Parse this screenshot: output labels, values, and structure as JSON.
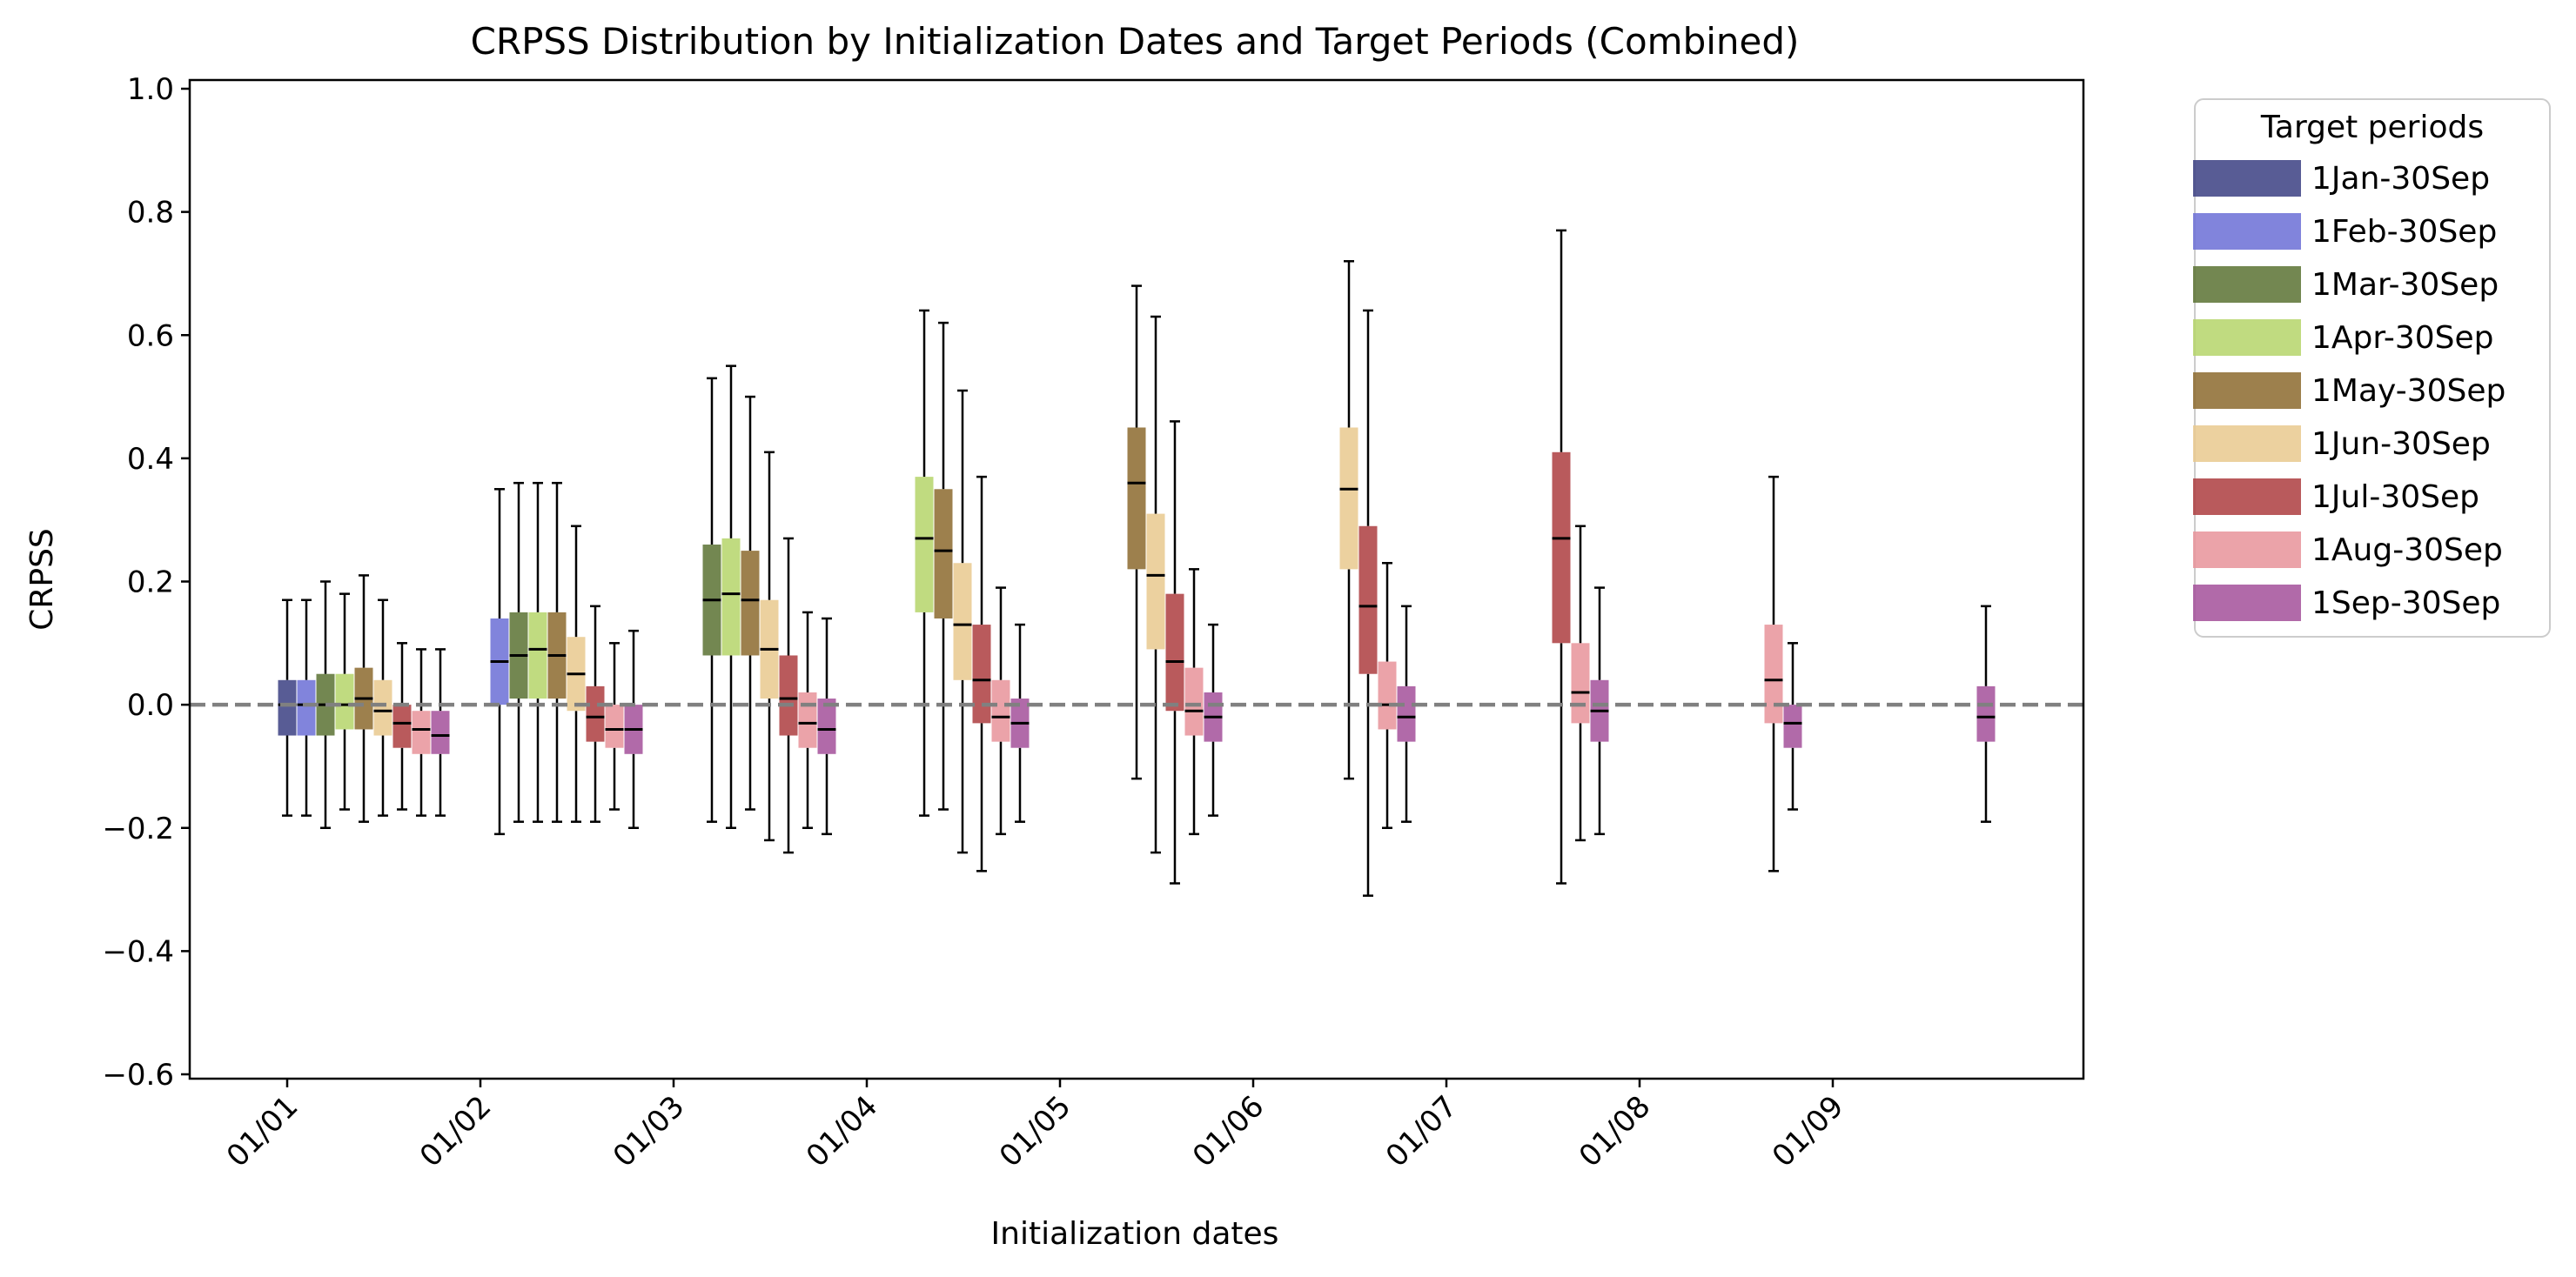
{
  "chart_data": {
    "type": "box",
    "title": "CRPSS Distribution by Initialization Dates and Target Periods (Combined)",
    "xlabel": "Initialization dates",
    "ylabel": "CRPSS",
    "ylim": [
      -0.6,
      1.0
    ],
    "yticks": [
      -0.6,
      -0.4,
      -0.2,
      0.0,
      0.2,
      0.4,
      0.6,
      0.8,
      1.0
    ],
    "ytick_labels": [
      "−0.6",
      "−0.4",
      "−0.2",
      "0.0",
      "0.2",
      "0.4",
      "0.6",
      "0.8",
      "1.0"
    ],
    "categories": [
      "01/01",
      "01/02",
      "01/03",
      "01/04",
      "01/05",
      "01/06",
      "01/07",
      "01/08",
      "01/09"
    ],
    "reference_line": 0.0,
    "grid": false,
    "legend_position": "outside-right",
    "legend": {
      "title": "Target periods",
      "entries": [
        {
          "name": "1Jan-30Sep",
          "color": "#3b3f82"
        },
        {
          "name": "1Feb-30Sep",
          "color": "#6b6fd6"
        },
        {
          "name": "1Mar-30Sep",
          "color": "#5a7233"
        },
        {
          "name": "1Apr-30Sep",
          "color": "#b5d56a"
        },
        {
          "name": "1May-30Sep",
          "color": "#8c6a2e"
        },
        {
          "name": "1Jun-30Sep",
          "color": "#e9c98e"
        },
        {
          "name": "1Jul-30Sep",
          "color": "#ad3d3f"
        },
        {
          "name": "1Aug-30Sep",
          "color": "#e8939a"
        },
        {
          "name": "1Sep-30Sep",
          "color": "#a3509a"
        }
      ]
    },
    "groups": [
      {
        "date": "01/01",
        "boxes": [
          {
            "period": "1Jan-30Sep",
            "q1": -0.05,
            "median": 0.0,
            "q3": 0.04,
            "whislo": -0.18,
            "whishi": 0.17
          },
          {
            "period": "1Feb-30Sep",
            "q1": -0.05,
            "median": 0.0,
            "q3": 0.04,
            "whislo": -0.18,
            "whishi": 0.17
          },
          {
            "period": "1Mar-30Sep",
            "q1": -0.05,
            "median": 0.0,
            "q3": 0.05,
            "whislo": -0.2,
            "whishi": 0.2
          },
          {
            "period": "1Apr-30Sep",
            "q1": -0.04,
            "median": 0.0,
            "q3": 0.05,
            "whislo": -0.17,
            "whishi": 0.18
          },
          {
            "period": "1May-30Sep",
            "q1": -0.04,
            "median": 0.01,
            "q3": 0.06,
            "whislo": -0.19,
            "whishi": 0.21
          },
          {
            "period": "1Jun-30Sep",
            "q1": -0.05,
            "median": -0.01,
            "q3": 0.04,
            "whislo": -0.18,
            "whishi": 0.17
          },
          {
            "period": "1Jul-30Sep",
            "q1": -0.07,
            "median": -0.03,
            "q3": 0.0,
            "whislo": -0.17,
            "whishi": 0.1
          },
          {
            "period": "1Aug-30Sep",
            "q1": -0.08,
            "median": -0.04,
            "q3": -0.01,
            "whislo": -0.18,
            "whishi": 0.09
          },
          {
            "period": "1Sep-30Sep",
            "q1": -0.08,
            "median": -0.05,
            "q3": -0.01,
            "whislo": -0.18,
            "whishi": 0.09
          }
        ]
      },
      {
        "date": "01/02",
        "boxes": [
          {
            "period": "1Feb-30Sep",
            "q1": 0.0,
            "median": 0.07,
            "q3": 0.14,
            "whislo": -0.21,
            "whishi": 0.35
          },
          {
            "period": "1Mar-30Sep",
            "q1": 0.01,
            "median": 0.08,
            "q3": 0.15,
            "whislo": -0.19,
            "whishi": 0.36
          },
          {
            "period": "1Apr-30Sep",
            "q1": 0.01,
            "median": 0.09,
            "q3": 0.15,
            "whislo": -0.19,
            "whishi": 0.36
          },
          {
            "period": "1May-30Sep",
            "q1": 0.01,
            "median": 0.08,
            "q3": 0.15,
            "whislo": -0.19,
            "whishi": 0.36
          },
          {
            "period": "1Jun-30Sep",
            "q1": -0.01,
            "median": 0.05,
            "q3": 0.11,
            "whislo": -0.19,
            "whishi": 0.29
          },
          {
            "period": "1Jul-30Sep",
            "q1": -0.06,
            "median": -0.02,
            "q3": 0.03,
            "whislo": -0.19,
            "whishi": 0.16
          },
          {
            "period": "1Aug-30Sep",
            "q1": -0.07,
            "median": -0.04,
            "q3": 0.0,
            "whislo": -0.17,
            "whishi": 0.1
          },
          {
            "period": "1Sep-30Sep",
            "q1": -0.08,
            "median": -0.04,
            "q3": 0.0,
            "whislo": -0.2,
            "whishi": 0.12
          }
        ]
      },
      {
        "date": "01/03",
        "boxes": [
          {
            "period": "1Mar-30Sep",
            "q1": 0.08,
            "median": 0.17,
            "q3": 0.26,
            "whislo": -0.19,
            "whishi": 0.53
          },
          {
            "period": "1Apr-30Sep",
            "q1": 0.08,
            "median": 0.18,
            "q3": 0.27,
            "whislo": -0.2,
            "whishi": 0.55
          },
          {
            "period": "1May-30Sep",
            "q1": 0.08,
            "median": 0.17,
            "q3": 0.25,
            "whislo": -0.17,
            "whishi": 0.5
          },
          {
            "period": "1Jun-30Sep",
            "q1": 0.01,
            "median": 0.09,
            "q3": 0.17,
            "whislo": -0.22,
            "whishi": 0.41
          },
          {
            "period": "1Jul-30Sep",
            "q1": -0.05,
            "median": 0.01,
            "q3": 0.08,
            "whislo": -0.24,
            "whishi": 0.27
          },
          {
            "period": "1Aug-30Sep",
            "q1": -0.07,
            "median": -0.03,
            "q3": 0.02,
            "whislo": -0.2,
            "whishi": 0.15
          },
          {
            "period": "1Sep-30Sep",
            "q1": -0.08,
            "median": -0.04,
            "q3": 0.01,
            "whislo": -0.21,
            "whishi": 0.14
          }
        ]
      },
      {
        "date": "01/04",
        "boxes": [
          {
            "period": "1Apr-30Sep",
            "q1": 0.15,
            "median": 0.27,
            "q3": 0.37,
            "whislo": -0.18,
            "whishi": 0.64
          },
          {
            "period": "1May-30Sep",
            "q1": 0.14,
            "median": 0.25,
            "q3": 0.35,
            "whislo": -0.17,
            "whishi": 0.62
          },
          {
            "period": "1Jun-30Sep",
            "q1": 0.04,
            "median": 0.13,
            "q3": 0.23,
            "whislo": -0.24,
            "whishi": 0.51
          },
          {
            "period": "1Jul-30Sep",
            "q1": -0.03,
            "median": 0.04,
            "q3": 0.13,
            "whislo": -0.27,
            "whishi": 0.37
          },
          {
            "period": "1Aug-30Sep",
            "q1": -0.06,
            "median": -0.02,
            "q3": 0.04,
            "whislo": -0.21,
            "whishi": 0.19
          },
          {
            "period": "1Sep-30Sep",
            "q1": -0.07,
            "median": -0.03,
            "q3": 0.01,
            "whislo": -0.19,
            "whishi": 0.13
          }
        ]
      },
      {
        "date": "01/05",
        "boxes": [
          {
            "period": "1May-30Sep",
            "q1": 0.22,
            "median": 0.36,
            "q3": 0.45,
            "whislo": -0.12,
            "whishi": 0.68
          },
          {
            "period": "1Jun-30Sep",
            "q1": 0.09,
            "median": 0.21,
            "q3": 0.31,
            "whislo": -0.24,
            "whishi": 0.63
          },
          {
            "period": "1Jul-30Sep",
            "q1": -0.01,
            "median": 0.07,
            "q3": 0.18,
            "whislo": -0.29,
            "whishi": 0.46
          },
          {
            "period": "1Aug-30Sep",
            "q1": -0.05,
            "median": -0.01,
            "q3": 0.06,
            "whislo": -0.21,
            "whishi": 0.22
          },
          {
            "period": "1Sep-30Sep",
            "q1": -0.06,
            "median": -0.02,
            "q3": 0.02,
            "whislo": -0.18,
            "whishi": 0.13
          }
        ]
      },
      {
        "date": "01/06",
        "boxes": [
          {
            "period": "1Jun-30Sep",
            "q1": 0.22,
            "median": 0.35,
            "q3": 0.45,
            "whislo": -0.12,
            "whishi": 0.72
          },
          {
            "period": "1Jul-30Sep",
            "q1": 0.05,
            "median": 0.16,
            "q3": 0.29,
            "whislo": -0.31,
            "whishi": 0.64
          },
          {
            "period": "1Aug-30Sep",
            "q1": -0.04,
            "median": 0.0,
            "q3": 0.07,
            "whislo": -0.2,
            "whishi": 0.23
          },
          {
            "period": "1Sep-30Sep",
            "q1": -0.06,
            "median": -0.02,
            "q3": 0.03,
            "whislo": -0.19,
            "whishi": 0.16
          }
        ]
      },
      {
        "date": "01/07",
        "boxes": [
          {
            "period": "1Jul-30Sep",
            "q1": 0.1,
            "median": 0.27,
            "q3": 0.41,
            "whislo": -0.29,
            "whishi": 0.77
          },
          {
            "period": "1Aug-30Sep",
            "q1": -0.03,
            "median": 0.02,
            "q3": 0.1,
            "whislo": -0.22,
            "whishi": 0.29
          },
          {
            "period": "1Sep-30Sep",
            "q1": -0.06,
            "median": -0.01,
            "q3": 0.04,
            "whislo": -0.21,
            "whishi": 0.19
          }
        ]
      },
      {
        "date": "01/08",
        "boxes": [
          {
            "period": "1Aug-30Sep",
            "q1": -0.03,
            "median": 0.04,
            "q3": 0.13,
            "whislo": -0.27,
            "whishi": 0.37
          },
          {
            "period": "1Sep-30Sep",
            "q1": -0.07,
            "median": -0.03,
            "q3": 0.0,
            "whislo": -0.17,
            "whishi": 0.1
          }
        ]
      },
      {
        "date": "01/09",
        "boxes": [
          {
            "period": "1Sep-30Sep",
            "q1": -0.06,
            "median": -0.02,
            "q3": 0.03,
            "whislo": -0.19,
            "whishi": 0.16
          }
        ]
      }
    ]
  }
}
